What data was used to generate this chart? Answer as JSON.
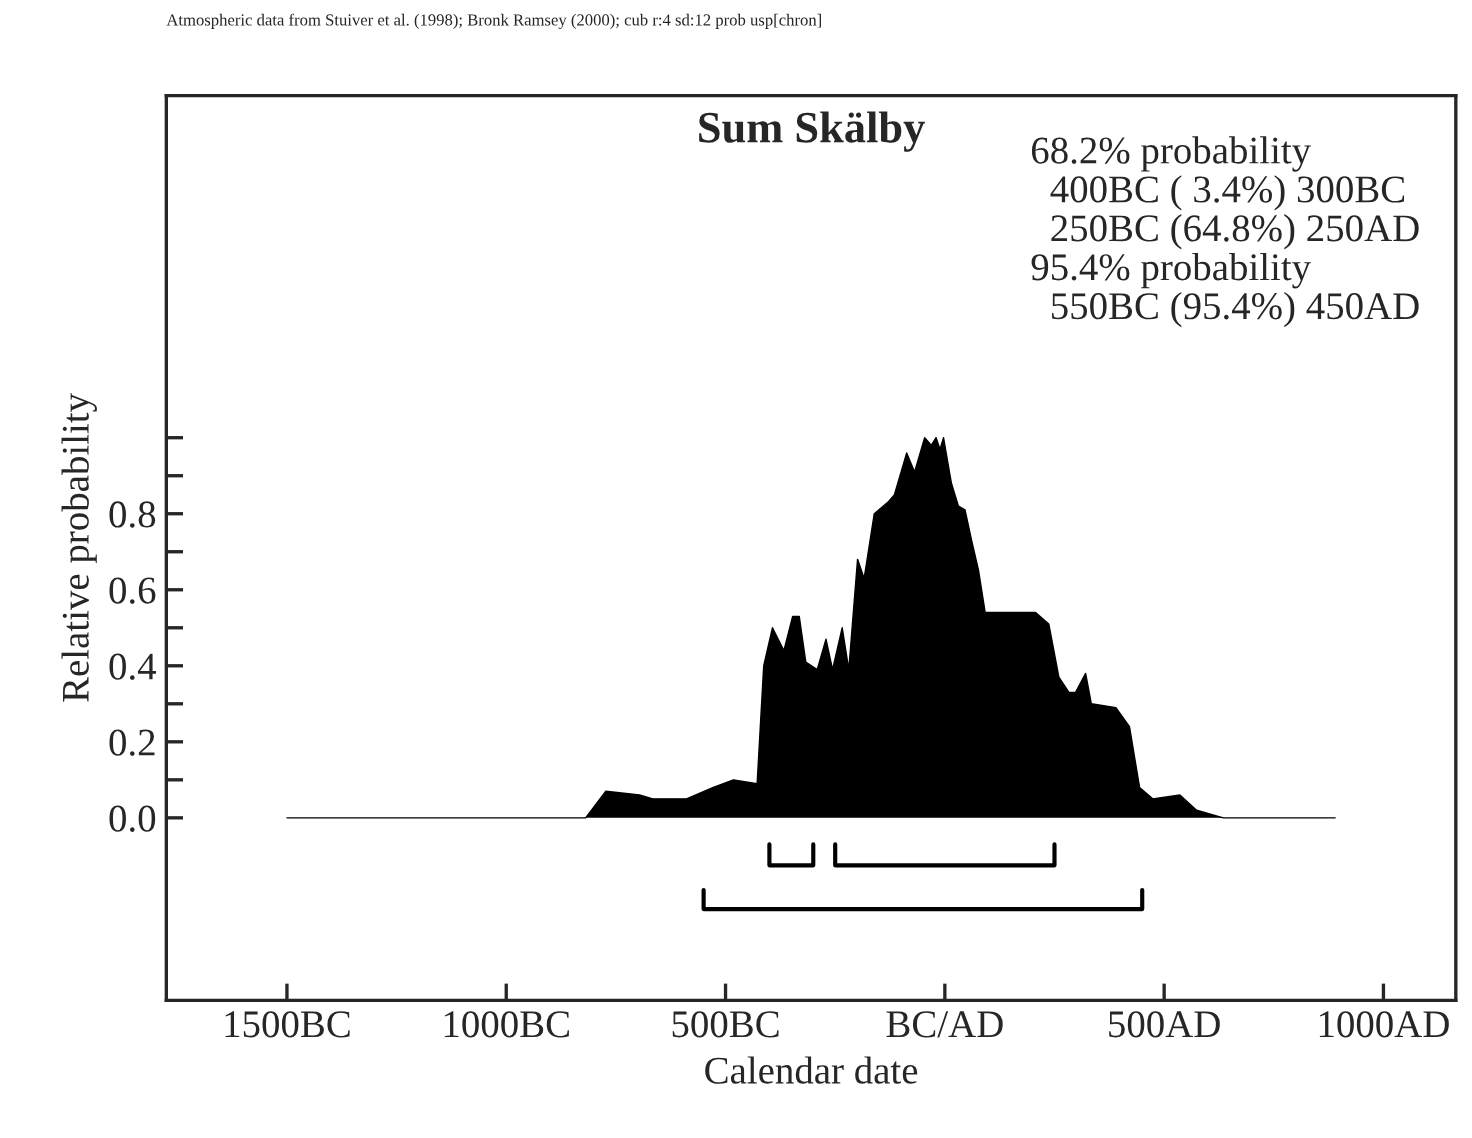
{
  "chart_data": {
    "type": "area",
    "title": "Sum Skälby",
    "xlabel": "Calendar date",
    "ylabel": "Relative probability",
    "annotations": [
      "Atmospheric data from Stuiver et al. (1998); Bronk Ramsey (2000); cub r:4 sd:12 prob usp[chron]",
      "68.2% probability",
      "  400BC ( 3.4%) 300BC",
      "  250BC (64.8%) 250AD",
      "95.4% probability",
      "  550BC (95.4%) 450AD"
    ],
    "x": [
      -1500,
      -819,
      -773,
      -696,
      -666,
      -589,
      -528,
      -482,
      -428,
      -413,
      -393,
      -367,
      -347,
      -332,
      -317,
      -291,
      -271,
      -256,
      -234,
      -219,
      -199,
      -184,
      -161,
      -130,
      -115,
      -87,
      -69,
      -46,
      -31,
      -20,
      -11,
      -3,
      15,
      31,
      46,
      61,
      77,
      92,
      146,
      207,
      237,
      260,
      283,
      298,
      321,
      334,
      390,
      421,
      444,
      474,
      536,
      574,
      635,
      890
    ],
    "series": [
      {
        "color": "#000000",
        "values": [
          0,
          0,
          0.07,
          0.06,
          0.05,
          0.05,
          0.08,
          0.1,
          0.09,
          0.4,
          0.5,
          0.44,
          0.53,
          0.53,
          0.41,
          0.39,
          0.47,
          0.39,
          0.5,
          0.39,
          0.68,
          0.63,
          0.8,
          0.83,
          0.85,
          0.96,
          0.91,
          1.0,
          0.98,
          1.0,
          0.97,
          1.0,
          0.88,
          0.82,
          0.81,
          0.73,
          0.65,
          0.54,
          0.54,
          0.54,
          0.51,
          0.37,
          0.33,
          0.33,
          0.38,
          0.3,
          0.29,
          0.24,
          0.08,
          0.05,
          0.06,
          0.02,
          0,
          0
        ]
      },
      {
        "type": "line",
        "color": "#000000",
        "x": [
          -400,
          -400,
          -300,
          -300
        ],
        "values": [
          -0.07,
          -0.125,
          -0.125,
          -0.07
        ]
      },
      {
        "type": "line",
        "color": "#000000",
        "x": [
          -250,
          -250,
          250,
          250
        ],
        "values": [
          -0.07,
          -0.125,
          -0.125,
          -0.07
        ]
      },
      {
        "type": "line",
        "color": "#000000",
        "x": [
          -550,
          -550,
          450,
          450
        ],
        "values": [
          -0.19,
          -0.24,
          -0.24,
          -0.19
        ]
      }
    ],
    "xlim": [
      -1775,
      1165
    ],
    "ylim": [
      -0.48,
      1.9
    ],
    "xticks": [
      {
        "value": -1500,
        "label": "1500BC"
      },
      {
        "value": -1000,
        "label": "1000BC"
      },
      {
        "value": -500,
        "label": "500BC"
      },
      {
        "value": 0,
        "label": "BC/AD"
      },
      {
        "value": 500,
        "label": "500AD"
      },
      {
        "value": 1000,
        "label": "1000AD"
      }
    ],
    "yticks": [
      {
        "value": 0.0,
        "label": "0.0"
      },
      {
        "value": 0.1,
        "label": null
      },
      {
        "value": 0.2,
        "label": "0.2"
      },
      {
        "value": 0.3,
        "label": null
      },
      {
        "value": 0.4,
        "label": "0.4"
      },
      {
        "value": 0.5,
        "label": null
      },
      {
        "value": 0.6,
        "label": "0.6"
      },
      {
        "value": 0.7,
        "label": null
      },
      {
        "value": 0.8,
        "label": "0.8"
      },
      {
        "value": 0.9,
        "label": null
      },
      {
        "value": 1.0,
        "label": null
      }
    ],
    "grid": false
  }
}
